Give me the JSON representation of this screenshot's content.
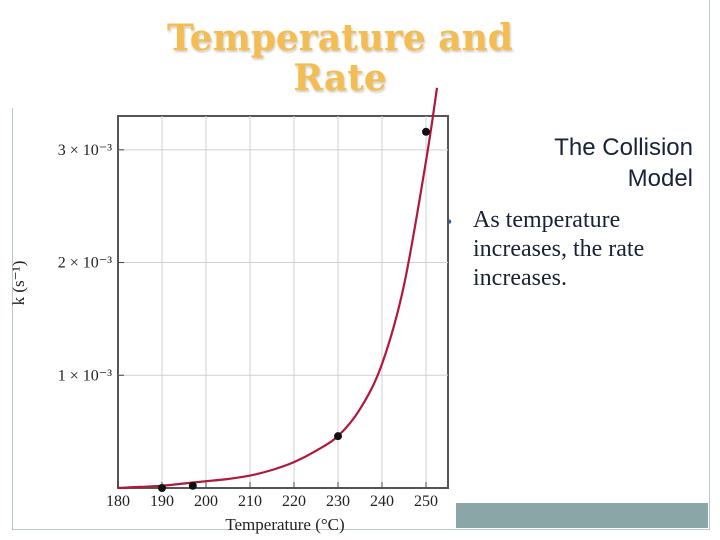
{
  "slide": {
    "title_line1": "Temperature and",
    "title_line2": "Rate",
    "subtitle_line1": "The Collision",
    "subtitle_line2": "Model",
    "bullet": "As temperature increases, the rate increases."
  },
  "colors": {
    "title": "#f3bd53",
    "curve": "#b0183c",
    "accent_bar": "#8aa6a6"
  },
  "chart_data": {
    "type": "line",
    "title": "",
    "xlabel": "Temperature (°C)",
    "ylabel": "k (s⁻¹)",
    "xlim": [
      180,
      255
    ],
    "ylim": [
      0,
      0.0033
    ],
    "x_ticks": [
      180,
      190,
      200,
      210,
      220,
      230,
      240,
      250
    ],
    "y_ticks": [
      {
        "value": 0.001,
        "label": "1 × 10⁻³"
      },
      {
        "value": 0.002,
        "label": "2 × 10⁻³"
      },
      {
        "value": 0.003,
        "label": "3 × 10⁻³"
      }
    ],
    "grid": true,
    "series": [
      {
        "kind": "curve",
        "x": [
          180,
          185,
          190,
          195,
          200,
          205,
          210,
          215,
          220,
          225,
          230,
          235,
          240,
          245,
          250,
          252.5
        ],
        "y": [
          0.0,
          1e-05,
          2e-05,
          4e-05,
          6e-05,
          8e-05,
          0.00011,
          0.00016,
          0.00023,
          0.00033,
          0.00046,
          0.0007,
          0.0011,
          0.0018,
          0.0029,
          0.00355
        ]
      },
      {
        "kind": "points",
        "x": [
          190,
          197,
          230,
          250
        ],
        "y": [
          0.0,
          2e-05,
          0.00046,
          0.00316
        ]
      }
    ]
  }
}
